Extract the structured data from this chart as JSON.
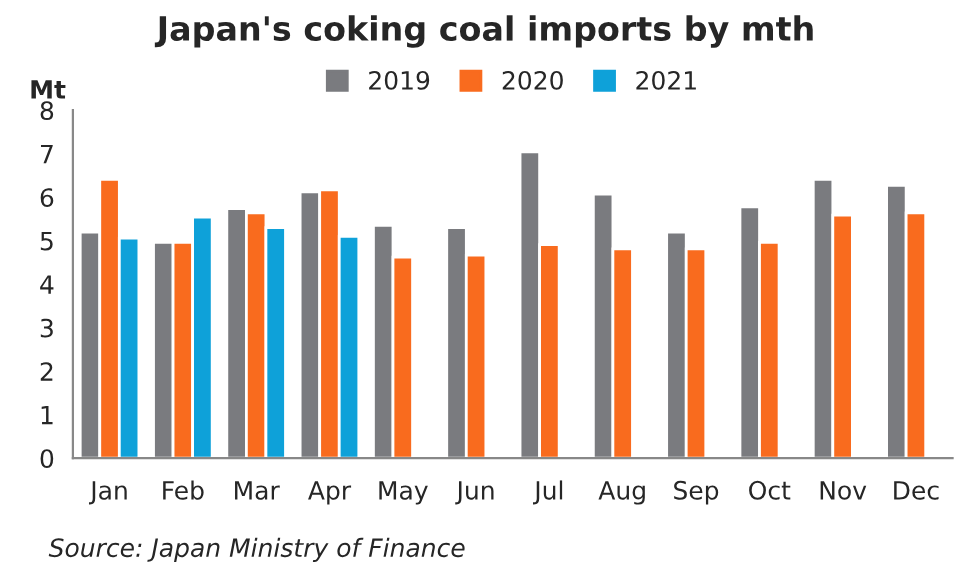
{
  "chart_data": {
    "type": "bar",
    "title": "Japan's coking coal imports by mth",
    "ylabel": "Mt",
    "categories": [
      "Jan",
      "Feb",
      "Mar",
      "Apr",
      "May",
      "Jun",
      "Jul",
      "Aug",
      "Sep",
      "Oct",
      "Nov",
      "Dec"
    ],
    "series": [
      {
        "name": "2019",
        "color": "#7a7b7f",
        "values": [
          5.2,
          4.96,
          5.74,
          6.12,
          5.35,
          5.3,
          7.04,
          6.07,
          5.2,
          5.78,
          6.41,
          6.27
        ]
      },
      {
        "name": "2020",
        "color": "#f96b1e",
        "values": [
          6.41,
          4.96,
          5.64,
          6.17,
          4.62,
          4.67,
          4.91,
          4.81,
          4.81,
          4.96,
          5.59,
          5.64
        ]
      },
      {
        "name": "2021",
        "color": "#0ea1d9",
        "values": [
          5.06,
          5.54,
          5.3,
          5.1,
          null,
          null,
          null,
          null,
          null,
          null,
          null,
          null
        ]
      }
    ],
    "ylim": [
      0,
      8
    ],
    "yticks": [
      0,
      1,
      2,
      3,
      4,
      5,
      6,
      7,
      8
    ],
    "grid": false,
    "legend": "top",
    "annotations": [
      "Source: Japan Ministry of Finance"
    ]
  }
}
